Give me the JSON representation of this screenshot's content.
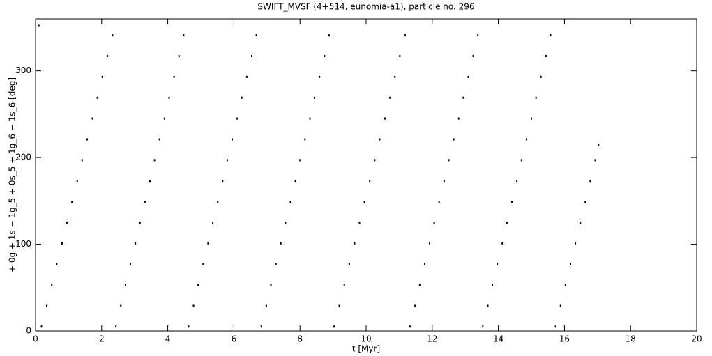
{
  "chart_data": {
    "type": "scatter",
    "title": "SWIFT_MVSF (4+514, eunomia-a1), particle no. 296",
    "x_label": "t [Myr]",
    "y_label": "+ 0g + 1s − 1g_5 + 0s_5 + 1g_6 − 1s_6 [deg]",
    "color": "#000000",
    "xlim": [
      0,
      20
    ],
    "ylim": [
      0,
      360
    ],
    "xticks": [
      0,
      2,
      4,
      6,
      8,
      10,
      12,
      14,
      16,
      18,
      20
    ],
    "yticks": [
      0,
      100,
      200,
      300
    ],
    "x": [
      0.1,
      0.18,
      0.34,
      0.49,
      0.64,
      0.8,
      0.95,
      1.1,
      1.26,
      1.41,
      1.56,
      1.72,
      1.87,
      2.02,
      2.17,
      2.33,
      2.43,
      2.58,
      2.72,
      2.87,
      3.02,
      3.16,
      3.31,
      3.46,
      3.6,
      3.75,
      3.9,
      4.04,
      4.19,
      4.34,
      4.48,
      4.63,
      4.78,
      4.92,
      5.07,
      5.22,
      5.36,
      5.51,
      5.66,
      5.8,
      5.95,
      6.1,
      6.24,
      6.39,
      6.54,
      6.68,
      6.83,
      6.98,
      7.12,
      7.27,
      7.42,
      7.56,
      7.71,
      7.86,
      8.0,
      8.15,
      8.3,
      8.44,
      8.59,
      8.74,
      8.88,
      9.03,
      9.19,
      9.34,
      9.49,
      9.65,
      9.8,
      9.95,
      10.11,
      10.26,
      10.41,
      10.57,
      10.72,
      10.87,
      11.02,
      11.18,
      11.33,
      11.48,
      11.62,
      11.77,
      11.92,
      12.06,
      12.21,
      12.36,
      12.5,
      12.65,
      12.8,
      12.94,
      13.09,
      13.24,
      13.38,
      13.53,
      13.68,
      13.82,
      13.97,
      14.12,
      14.26,
      14.41,
      14.56,
      14.7,
      14.85,
      15.0,
      15.14,
      15.29,
      15.44,
      15.58,
      15.73,
      15.88,
      16.03,
      16.18,
      16.33,
      16.48,
      16.63,
      16.78,
      16.93,
      17.03
    ],
    "y": [
      352,
      5,
      29,
      53,
      77,
      101,
      125,
      149,
      173,
      197,
      221,
      245,
      269,
      293,
      317,
      341,
      5,
      29,
      53,
      77,
      101,
      125,
      149,
      173,
      197,
      221,
      245,
      269,
      293,
      317,
      341,
      5,
      29,
      53,
      77,
      101,
      125,
      149,
      173,
      197,
      221,
      245,
      269,
      293,
      317,
      341,
      5,
      29,
      53,
      77,
      101,
      125,
      149,
      173,
      197,
      221,
      245,
      269,
      293,
      317,
      341,
      5,
      29,
      53,
      77,
      101,
      125,
      149,
      173,
      197,
      221,
      245,
      269,
      293,
      317,
      341,
      5,
      29,
      53,
      77,
      101,
      125,
      149,
      173,
      197,
      221,
      245,
      269,
      293,
      317,
      341,
      5,
      29,
      53,
      77,
      101,
      125,
      149,
      173,
      197,
      221,
      245,
      269,
      293,
      317,
      341,
      5,
      29,
      53,
      77,
      101,
      125,
      149,
      173,
      197,
      215
    ]
  }
}
